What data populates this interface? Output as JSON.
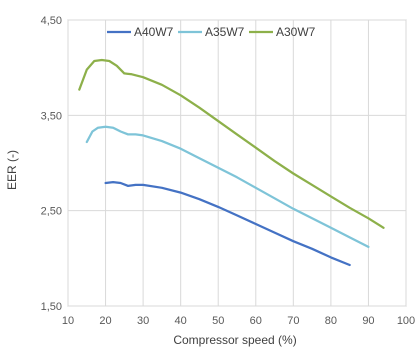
{
  "chart_data": {
    "type": "line",
    "title": "",
    "xlabel": "Compressor speed (%)",
    "ylabel": "EER (-)",
    "xlim": [
      10,
      100
    ],
    "ylim": [
      1.5,
      4.5
    ],
    "x_ticks": [
      10,
      20,
      30,
      40,
      50,
      60,
      70,
      80,
      90,
      100
    ],
    "x_tick_labels": [
      "10",
      "20",
      "30",
      "40",
      "50",
      "60",
      "70",
      "80",
      "90",
      "100"
    ],
    "y_ticks": [
      1.5,
      2.5,
      3.5,
      4.5
    ],
    "y_tick_labels": [
      "1,50",
      "2,50",
      "3,50",
      "4,50"
    ],
    "grid": {
      "vertical": true,
      "horizontal": true
    },
    "legend_position": "top",
    "series": [
      {
        "name": "A40W7",
        "color": "#4472c4",
        "points": [
          [
            20,
            2.79
          ],
          [
            22,
            2.8
          ],
          [
            24,
            2.79
          ],
          [
            26,
            2.76
          ],
          [
            28,
            2.77
          ],
          [
            30,
            2.77
          ],
          [
            35,
            2.74
          ],
          [
            40,
            2.69
          ],
          [
            45,
            2.62
          ],
          [
            50,
            2.54
          ],
          [
            55,
            2.45
          ],
          [
            60,
            2.36
          ],
          [
            65,
            2.27
          ],
          [
            70,
            2.18
          ],
          [
            75,
            2.1
          ],
          [
            80,
            2.01
          ],
          [
            85,
            1.93
          ]
        ]
      },
      {
        "name": "A35W7",
        "color": "#7ec4d8",
        "points": [
          [
            15,
            3.22
          ],
          [
            16.5,
            3.33
          ],
          [
            18,
            3.37
          ],
          [
            20,
            3.38
          ],
          [
            22,
            3.37
          ],
          [
            24,
            3.33
          ],
          [
            26,
            3.3
          ],
          [
            28,
            3.3
          ],
          [
            30,
            3.29
          ],
          [
            35,
            3.23
          ],
          [
            40,
            3.15
          ],
          [
            45,
            3.05
          ],
          [
            50,
            2.95
          ],
          [
            55,
            2.85
          ],
          [
            60,
            2.74
          ],
          [
            65,
            2.63
          ],
          [
            70,
            2.52
          ],
          [
            75,
            2.42
          ],
          [
            80,
            2.32
          ],
          [
            85,
            2.22
          ],
          [
            90,
            2.12
          ]
        ]
      },
      {
        "name": "A30W7",
        "color": "#8db04a",
        "points": [
          [
            13,
            3.77
          ],
          [
            15,
            3.98
          ],
          [
            17,
            4.07
          ],
          [
            19,
            4.08
          ],
          [
            21,
            4.07
          ],
          [
            23,
            4.02
          ],
          [
            25,
            3.94
          ],
          [
            27,
            3.93
          ],
          [
            30,
            3.9
          ],
          [
            35,
            3.82
          ],
          [
            40,
            3.71
          ],
          [
            45,
            3.58
          ],
          [
            50,
            3.44
          ],
          [
            55,
            3.3
          ],
          [
            60,
            3.16
          ],
          [
            65,
            3.02
          ],
          [
            70,
            2.89
          ],
          [
            75,
            2.77
          ],
          [
            80,
            2.65
          ],
          [
            85,
            2.53
          ],
          [
            90,
            2.42
          ],
          [
            94,
            2.32
          ]
        ]
      }
    ]
  }
}
